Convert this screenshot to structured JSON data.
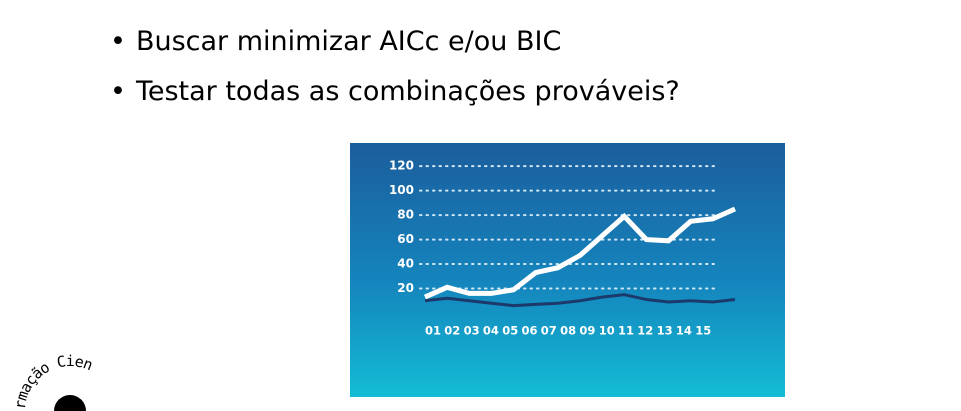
{
  "bullets": [
    "Buscar minimizar AICc e/ou BIC",
    "Testar todas as combinações prováveis?"
  ],
  "logo_text": "rmação Cien",
  "chart_data": {
    "type": "line",
    "categories": [
      "01",
      "02",
      "03",
      "04",
      "05",
      "06",
      "07",
      "08",
      "09",
      "10",
      "11",
      "12",
      "13",
      "14",
      "15"
    ],
    "series": [
      {
        "color": "#ffffff",
        "values": [
          13,
          21,
          16,
          16,
          19,
          33,
          37,
          47,
          63,
          79,
          60,
          59,
          75,
          77,
          85
        ]
      },
      {
        "color": "#1b3a6b",
        "values": [
          10,
          12,
          10,
          8,
          6,
          7,
          8,
          10,
          13,
          15,
          11,
          9,
          10,
          9,
          11
        ]
      }
    ],
    "ylim": [
      0,
      125
    ],
    "yticks": [
      20,
      40,
      60,
      80,
      100,
      120
    ],
    "grid": true
  }
}
